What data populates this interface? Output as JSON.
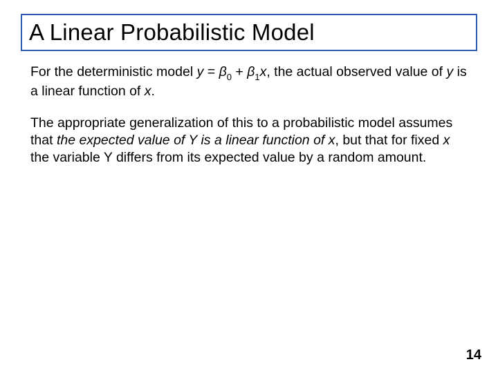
{
  "slide": {
    "title": "A Linear Probabilistic Model",
    "title_border_color": "#2e5bb7",
    "title_fontsize": 33,
    "title_color": "#000000",
    "body_fontsize": 19.5,
    "body_color": "#000000",
    "background_color": "#ffffff",
    "paragraphs": {
      "p1_a": "For the deterministic model ",
      "p1_y": "y",
      "p1_eq": " = ",
      "p1_beta": "β",
      "p1_sub0": "0",
      "p1_plus": " + ",
      "p1_sub1": "1",
      "p1_x": "x",
      "p1_b": ", the actual observed value of ",
      "p1_y2": "y",
      "p1_c": " is a linear function of ",
      "p1_x2": "x",
      "p1_d": ".",
      "p2_a": "The appropriate generalization of this to a probabilistic model assumes that ",
      "p2_em": "the expected value of Y is a linear function of x",
      "p2_b": ", but that for fixed ",
      "p2_x": "x",
      "p2_c": " the variable ",
      "p2_Y": "Y",
      "p2_d": " differs from its expected value by a random amount."
    },
    "page_number": "14"
  }
}
